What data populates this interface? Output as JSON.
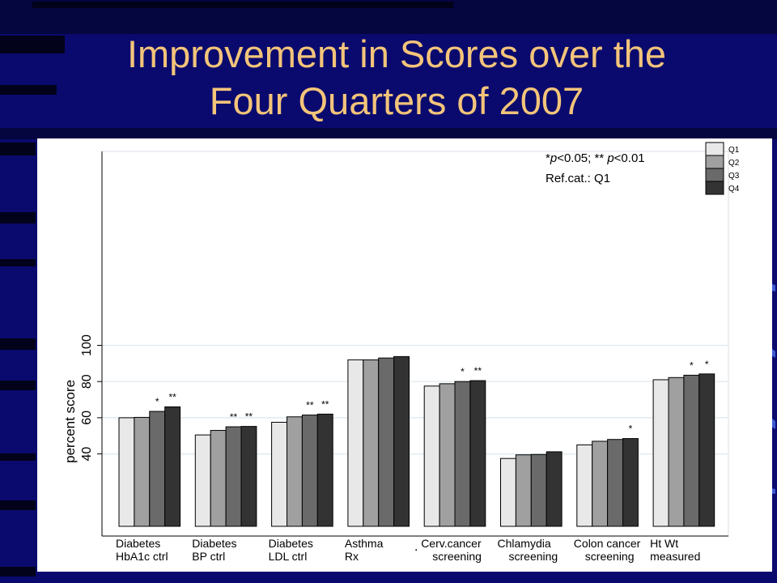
{
  "slide": {
    "title_line1": "Improvement in Scores over the",
    "title_line2": "Four Quarters of 2007"
  },
  "colors": {
    "background": "#0a0a6e",
    "title": "#f3c47a",
    "panel": "#ffffff",
    "series": [
      "#e8e8e8",
      "#a0a0a0",
      "#6a6a6a",
      "#333333"
    ]
  },
  "chart_data": {
    "type": "bar",
    "ylabel": "percent score",
    "ylim": [
      0,
      103
    ],
    "yticks": [
      40,
      60,
      80,
      100
    ],
    "grid": true,
    "legend_position": "top-right",
    "note_line1_parts": [
      "*",
      "p",
      "<0.05; ** ",
      "p",
      "<0.01"
    ],
    "note_line2": "Ref.cat.: Q1",
    "categories": [
      [
        "Diabetes",
        "HbA1c ctrl"
      ],
      [
        "Diabetes",
        "BP ctrl"
      ],
      [
        "Diabetes",
        "LDL ctrl"
      ],
      [
        "Asthma",
        "Rx"
      ],
      [
        "Cerv.cancer",
        "screening"
      ],
      [
        "Chlamydia",
        "screening"
      ],
      [
        "Colon cancer",
        "screening"
      ],
      [
        "Ht Wt",
        "measured"
      ]
    ],
    "series": [
      {
        "name": "Q1",
        "values": [
          60,
          50.5,
          57.5,
          92,
          77.5,
          37.5,
          45,
          81
        ]
      },
      {
        "name": "Q2",
        "values": [
          60.2,
          53,
          60.5,
          92,
          78.8,
          39.5,
          47,
          82.2
        ]
      },
      {
        "name": "Q3",
        "values": [
          63.5,
          55,
          61.5,
          93,
          80,
          39.7,
          48,
          83.5
        ]
      },
      {
        "name": "Q4",
        "values": [
          66,
          55.2,
          62,
          93.8,
          80.5,
          41.2,
          48.5,
          84.2
        ]
      }
    ],
    "significance": [
      [
        null,
        "*",
        "**"
      ],
      [
        null,
        "**",
        "**"
      ],
      [
        null,
        "**",
        "**"
      ],
      [
        null,
        null,
        null
      ],
      [
        null,
        "*",
        "**"
      ],
      [
        null,
        null,
        null
      ],
      [
        null,
        null,
        "*"
      ],
      [
        null,
        "*",
        "*"
      ]
    ],
    "stray_mark": "."
  }
}
